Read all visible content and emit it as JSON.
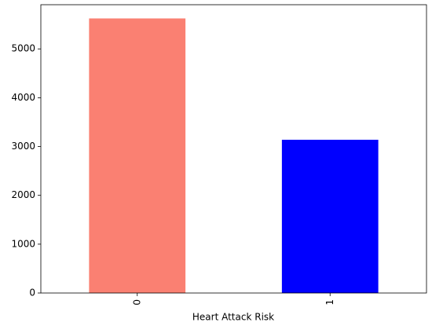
{
  "chart_data": {
    "type": "bar",
    "x_label": "Heart Attack Risk",
    "categories": [
      "0",
      "1"
    ],
    "values": [
      5624,
      3139
    ],
    "colors": [
      "#fa8072",
      "#0000ff"
    ],
    "ylim": [
      0,
      5905
    ],
    "yticks": [
      0,
      1000,
      2000,
      3000,
      4000,
      5000
    ],
    "grid": false
  }
}
